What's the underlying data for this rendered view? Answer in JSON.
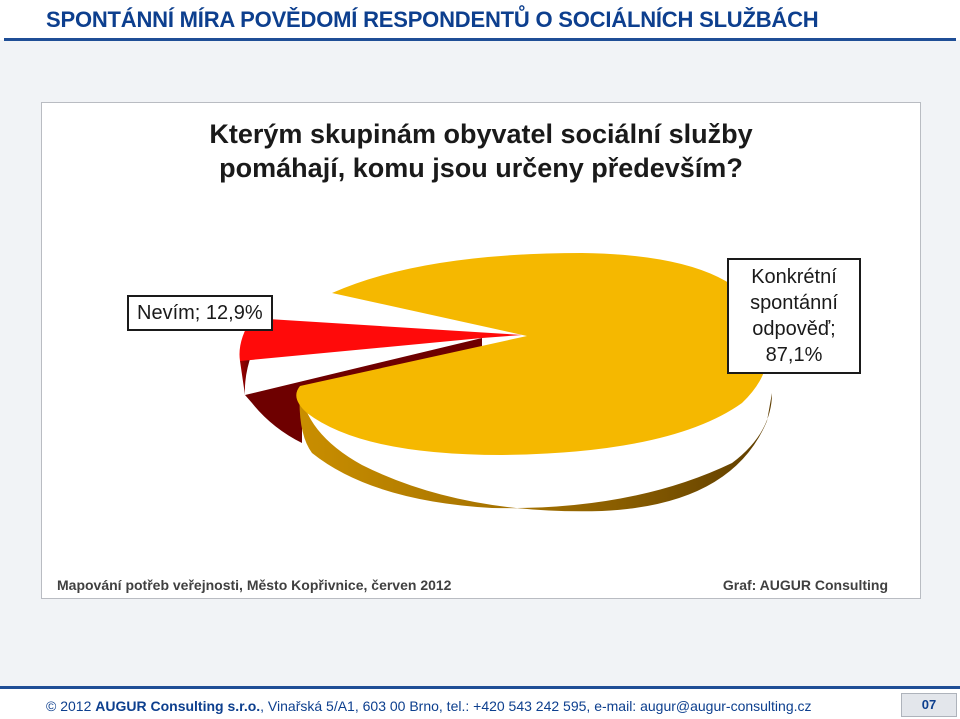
{
  "header": {
    "title": "SPONTÁNNÍ MÍRA POVĚDOMÍ RESPONDENTŮ O SOCIÁLNÍCH SLUŽBÁCH"
  },
  "chart_data": {
    "type": "pie",
    "title": "Kterým skupinám obyvatel sociální služby pomáhají, komu jsou určeny především?",
    "slices": [
      {
        "label": "Konkrétní spontánní odpověď",
        "value": 87.1,
        "display": "87,1%",
        "color": "#f5b800",
        "exploded": false
      },
      {
        "label": "Nevím",
        "value": 12.9,
        "display": "12,9%",
        "color": "#ff0a0a",
        "exploded": true
      }
    ],
    "data_labels": [
      {
        "lines": [
          "Konkrétní",
          "spontánní",
          "odpověď;",
          "87,1%"
        ]
      },
      {
        "lines": [
          "Nevím; 12,9%"
        ]
      }
    ],
    "style": "3d-exploded"
  },
  "chart_notes": {
    "source": "Mapování potřeb veřejnosti, Město Kopřivnice, červen 2012",
    "credit": "Graf: AUGUR Consulting"
  },
  "footer": {
    "copyright_symbol": "©",
    "year": "2012",
    "company": "AUGUR Consulting s.r.o.",
    "contact": ", Vinařská 5/A1, 603 00 Brno, tel.: +420 543 242 595, e-mail: augur@augur-consulting.cz",
    "page_number": "07"
  }
}
